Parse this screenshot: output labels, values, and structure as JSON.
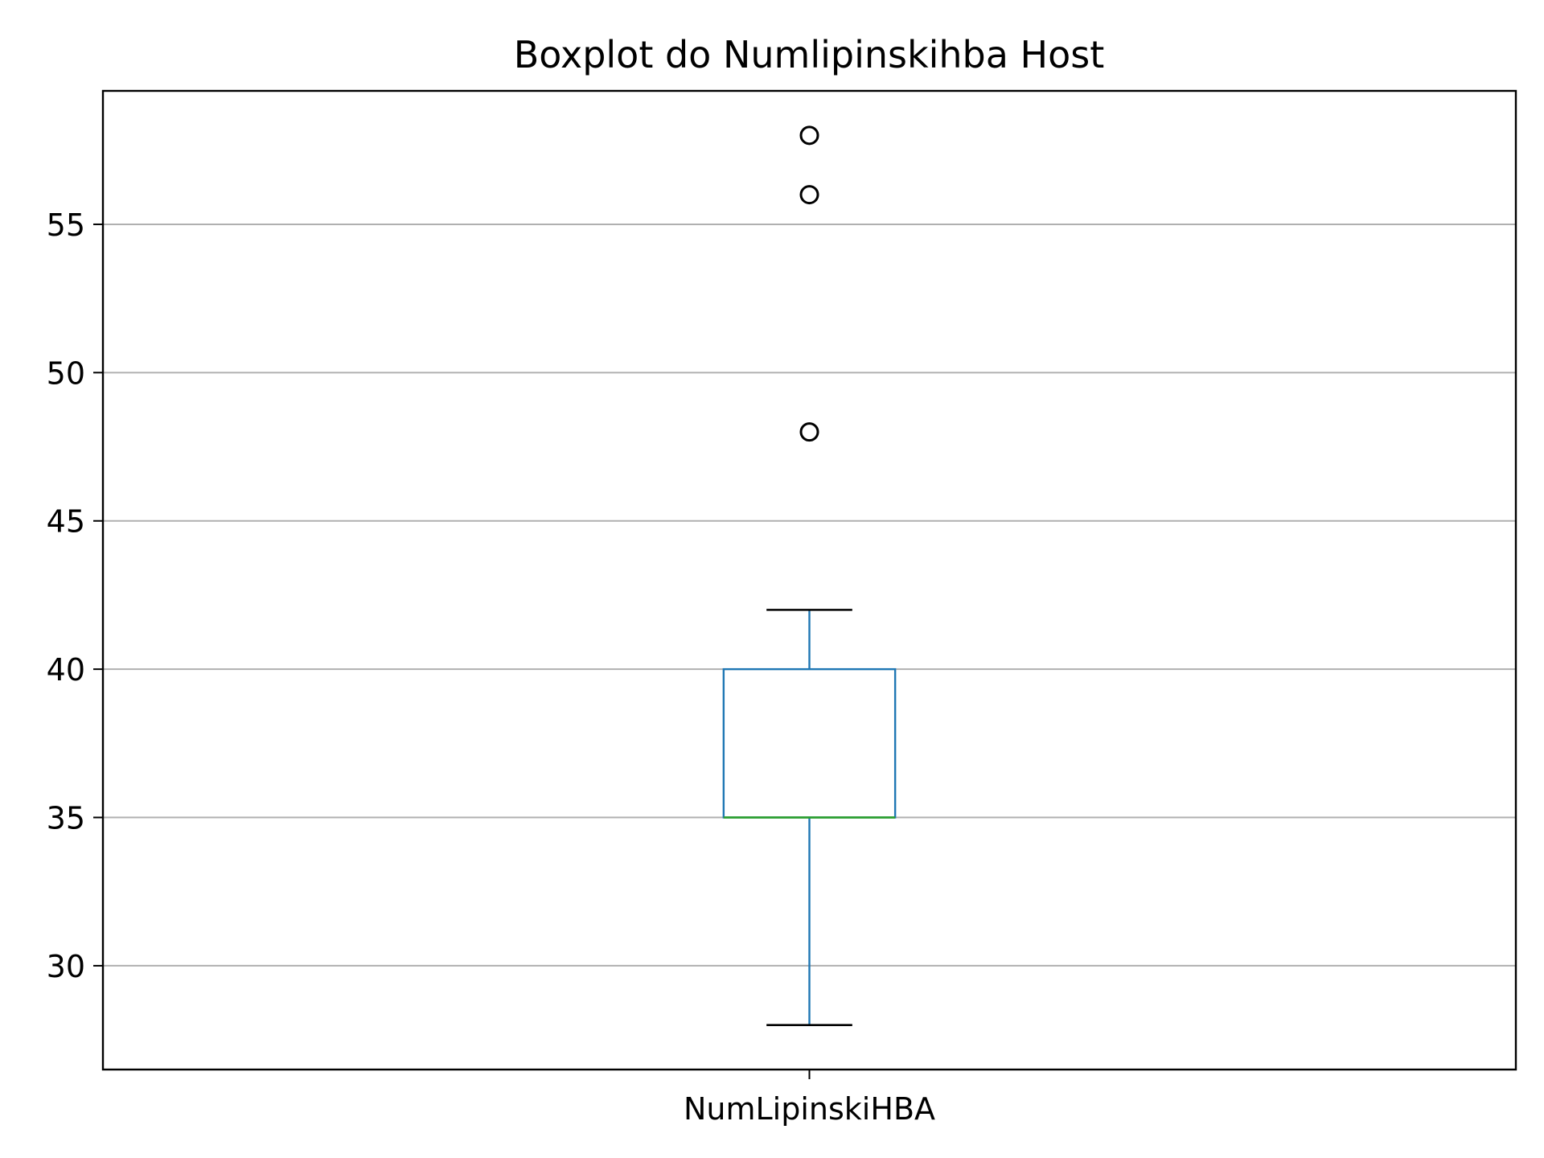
{
  "chart_data": {
    "type": "box",
    "title": "Boxplot do Numlipinskihba Host",
    "xlabel": "",
    "ylabel": "",
    "categories": [
      "NumLipinskiHBA"
    ],
    "ylim": [
      26.5,
      59.5
    ],
    "yticks": [
      30,
      35,
      40,
      45,
      50,
      55
    ],
    "grid": "y",
    "legend": "none",
    "boxes": [
      {
        "label": "NumLipinskiHBA",
        "whisker_low": 28,
        "q1": 35,
        "median": 35,
        "q3": 40,
        "whisker_high": 42,
        "outliers": [
          48,
          56,
          58
        ]
      }
    ],
    "colors": {
      "box": "#1f77b4",
      "median": "#2ca02c",
      "caps": "#000000",
      "outliers": "#000000",
      "grid": "#b0b0b0"
    }
  }
}
